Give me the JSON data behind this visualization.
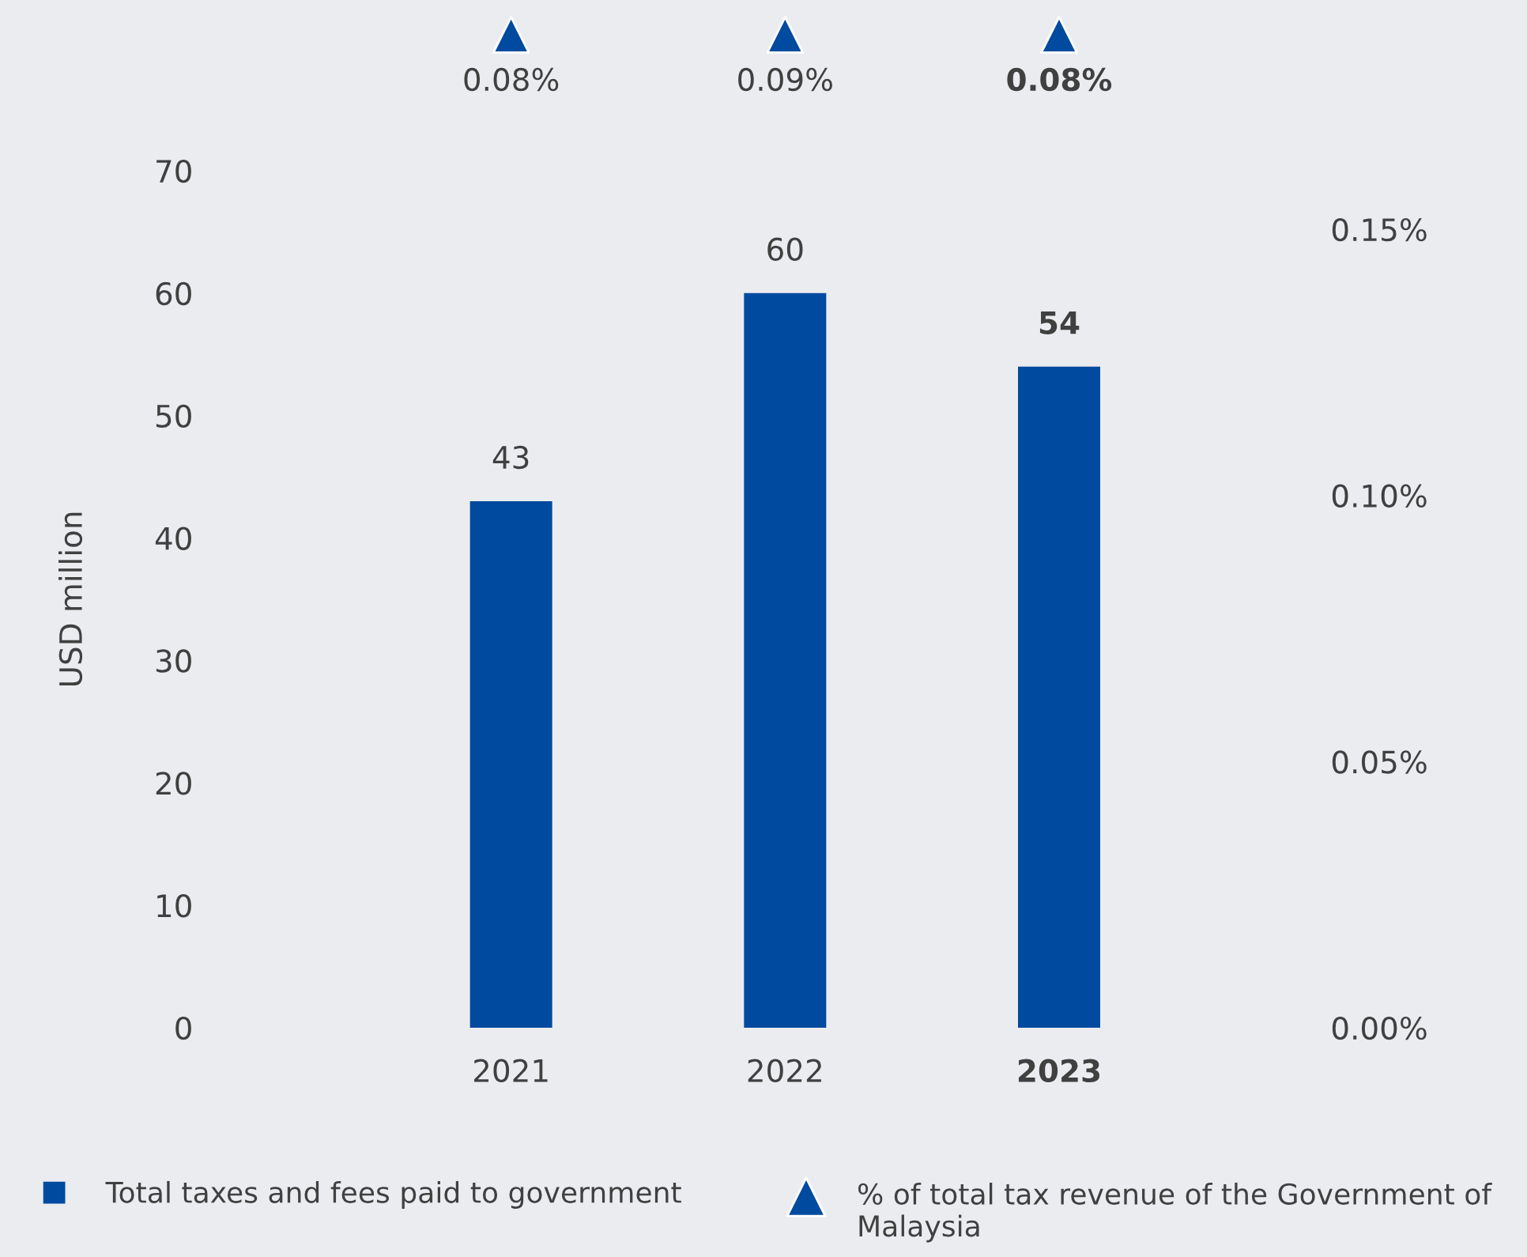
{
  "chart_data": {
    "type": "bar",
    "ylabel": "USD million",
    "categories": [
      "2021",
      "2022",
      "2023"
    ],
    "series": [
      {
        "name": "Total taxes and fees paid to government",
        "color": "#004a9f",
        "values": [
          43,
          60,
          54
        ]
      }
    ],
    "annotations": [
      "0.08%",
      "0.09%",
      "0.08%",
      "% of total tax revenue of the Government of Malaysia"
    ],
    "data_labels": true,
    "ylim": [
      0,
      70
    ],
    "yticks": [
      0,
      10,
      20,
      30,
      40,
      50,
      60,
      70
    ],
    "y2lim": [
      0,
      0.15
    ],
    "y2ticks": [
      {
        "value": 0,
        "label": "0.00%"
      },
      {
        "value": 0.05,
        "label": "0.05%"
      },
      {
        "value": 0.1,
        "label": "0.10%"
      },
      {
        "value": 0.15,
        "label": "0.15%"
      }
    ],
    "grid": false,
    "legend": "bottom"
  }
}
